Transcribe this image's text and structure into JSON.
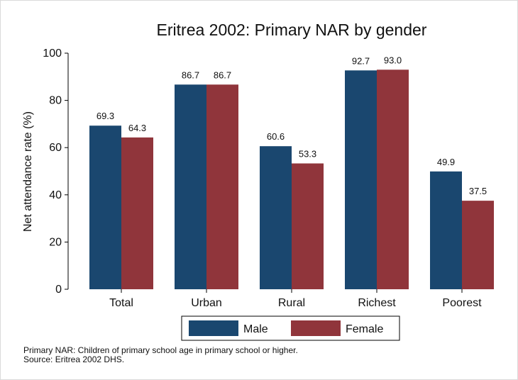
{
  "chart_data": {
    "type": "bar",
    "title": "Eritrea 2002: Primary NAR by gender",
    "ylabel": "Net attendance rate (%)",
    "xlabel": "",
    "categories": [
      "Total",
      "Urban",
      "Rural",
      "Richest",
      "Poorest"
    ],
    "series": [
      {
        "name": "Male",
        "values": [
          69.3,
          86.7,
          60.6,
          92.7,
          49.9
        ],
        "labels": [
          "69.3",
          "86.7",
          "60.6",
          "92.7",
          "49.9"
        ],
        "color": "#1a476f"
      },
      {
        "name": "Female",
        "values": [
          64.3,
          86.7,
          53.3,
          93.0,
          37.5
        ],
        "labels": [
          "64.3",
          "86.7",
          "53.3",
          "93.0",
          "37.5"
        ],
        "color": "#90353b"
      }
    ],
    "ylim": [
      0,
      100
    ],
    "yticks": [
      "0",
      "20",
      "40",
      "60",
      "80",
      "100"
    ],
    "grid": false,
    "legend_position": "bottom"
  },
  "notes": {
    "line1": "Primary NAR: Children of primary school age in primary school or higher.",
    "line2": "Source: Eritrea 2002 DHS."
  }
}
